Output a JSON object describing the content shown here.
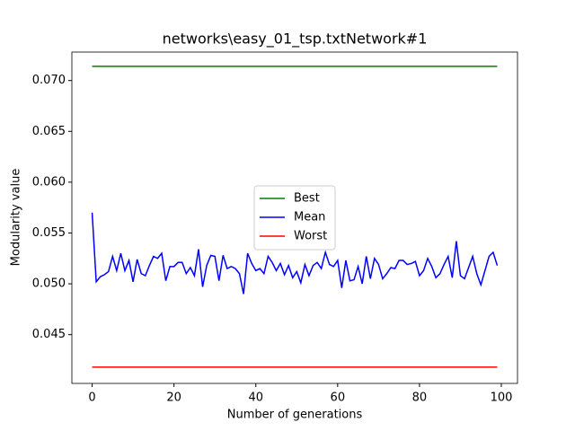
{
  "chart_data": {
    "type": "line",
    "title": "networks\\easy_01_tsp.txtNetwork#1",
    "xlabel": "Number of generations",
    "ylabel": "Modularity value",
    "x": [
      0,
      1,
      2,
      3,
      4,
      5,
      6,
      7,
      8,
      9,
      10,
      11,
      12,
      13,
      14,
      15,
      16,
      17,
      18,
      19,
      20,
      21,
      22,
      23,
      24,
      25,
      26,
      27,
      28,
      29,
      30,
      31,
      32,
      33,
      34,
      35,
      36,
      37,
      38,
      39,
      40,
      41,
      42,
      43,
      44,
      45,
      46,
      47,
      48,
      49,
      50,
      51,
      52,
      53,
      54,
      55,
      56,
      57,
      58,
      59,
      60,
      61,
      62,
      63,
      64,
      65,
      66,
      67,
      68,
      69,
      70,
      71,
      72,
      73,
      74,
      75,
      76,
      77,
      78,
      79,
      80,
      81,
      82,
      83,
      84,
      85,
      86,
      87,
      88,
      89,
      90,
      91,
      92,
      93,
      94,
      95,
      96,
      97,
      98,
      99
    ],
    "series": [
      {
        "name": "Best",
        "color": "#008000",
        "values": [
          0.0714,
          0.0714,
          0.0714,
          0.0714,
          0.0714,
          0.0714,
          0.0714,
          0.0714,
          0.0714,
          0.0714,
          0.0714,
          0.0714,
          0.0714,
          0.0714,
          0.0714,
          0.0714,
          0.0714,
          0.0714,
          0.0714,
          0.0714,
          0.0714,
          0.0714,
          0.0714,
          0.0714,
          0.0714,
          0.0714,
          0.0714,
          0.0714,
          0.0714,
          0.0714,
          0.0714,
          0.0714,
          0.0714,
          0.0714,
          0.0714,
          0.0714,
          0.0714,
          0.0714,
          0.0714,
          0.0714,
          0.0714,
          0.0714,
          0.0714,
          0.0714,
          0.0714,
          0.0714,
          0.0714,
          0.0714,
          0.0714,
          0.0714,
          0.0714,
          0.0714,
          0.0714,
          0.0714,
          0.0714,
          0.0714,
          0.0714,
          0.0714,
          0.0714,
          0.0714,
          0.0714,
          0.0714,
          0.0714,
          0.0714,
          0.0714,
          0.0714,
          0.0714,
          0.0714,
          0.0714,
          0.0714,
          0.0714,
          0.0714,
          0.0714,
          0.0714,
          0.0714,
          0.0714,
          0.0714,
          0.0714,
          0.0714,
          0.0714,
          0.0714,
          0.0714,
          0.0714,
          0.0714,
          0.0714,
          0.0714,
          0.0714,
          0.0714,
          0.0714,
          0.0714,
          0.0714,
          0.0714,
          0.0714,
          0.0714,
          0.0714,
          0.0714,
          0.0714,
          0.0714,
          0.0714,
          0.0714
        ]
      },
      {
        "name": "Mean",
        "color": "#0000ff",
        "values": [
          0.057,
          0.0502,
          0.0507,
          0.0509,
          0.0512,
          0.0527,
          0.0513,
          0.053,
          0.0513,
          0.0523,
          0.0502,
          0.0524,
          0.051,
          0.0508,
          0.0518,
          0.0527,
          0.0525,
          0.053,
          0.0503,
          0.0517,
          0.0517,
          0.0521,
          0.0521,
          0.051,
          0.0516,
          0.0508,
          0.0534,
          0.0497,
          0.0518,
          0.0528,
          0.0527,
          0.0503,
          0.0528,
          0.0515,
          0.0517,
          0.0515,
          0.051,
          0.049,
          0.053,
          0.052,
          0.0513,
          0.0515,
          0.051,
          0.0527,
          0.0521,
          0.0513,
          0.052,
          0.0509,
          0.0518,
          0.0506,
          0.0512,
          0.0501,
          0.0519,
          0.0508,
          0.0518,
          0.0521,
          0.0515,
          0.0531,
          0.0519,
          0.0517,
          0.0523,
          0.0496,
          0.0523,
          0.0503,
          0.0504,
          0.0517,
          0.05,
          0.0527,
          0.0505,
          0.0525,
          0.0519,
          0.0505,
          0.051,
          0.0516,
          0.0515,
          0.0523,
          0.0523,
          0.0519,
          0.052,
          0.0522,
          0.0508,
          0.0513,
          0.0525,
          0.0517,
          0.0506,
          0.051,
          0.0519,
          0.0527,
          0.0506,
          0.0542,
          0.0508,
          0.0505,
          0.0516,
          0.0527,
          0.051,
          0.0499,
          0.0513,
          0.0527,
          0.0531,
          0.0518
        ]
      },
      {
        "name": "Worst",
        "color": "#ff0000",
        "values": [
          0.0418,
          0.0418,
          0.0418,
          0.0418,
          0.0418,
          0.0418,
          0.0418,
          0.0418,
          0.0418,
          0.0418,
          0.0418,
          0.0418,
          0.0418,
          0.0418,
          0.0418,
          0.0418,
          0.0418,
          0.0418,
          0.0418,
          0.0418,
          0.0418,
          0.0418,
          0.0418,
          0.0418,
          0.0418,
          0.0418,
          0.0418,
          0.0418,
          0.0418,
          0.0418,
          0.0418,
          0.0418,
          0.0418,
          0.0418,
          0.0418,
          0.0418,
          0.0418,
          0.0418,
          0.0418,
          0.0418,
          0.0418,
          0.0418,
          0.0418,
          0.0418,
          0.0418,
          0.0418,
          0.0418,
          0.0418,
          0.0418,
          0.0418,
          0.0418,
          0.0418,
          0.0418,
          0.0418,
          0.0418,
          0.0418,
          0.0418,
          0.0418,
          0.0418,
          0.0418,
          0.0418,
          0.0418,
          0.0418,
          0.0418,
          0.0418,
          0.0418,
          0.0418,
          0.0418,
          0.0418,
          0.0418,
          0.0418,
          0.0418,
          0.0418,
          0.0418,
          0.0418,
          0.0418,
          0.0418,
          0.0418,
          0.0418,
          0.0418,
          0.0418,
          0.0418,
          0.0418,
          0.0418,
          0.0418,
          0.0418,
          0.0418,
          0.0418,
          0.0418,
          0.0418,
          0.0418,
          0.0418,
          0.0418,
          0.0418,
          0.0418,
          0.0418,
          0.0418,
          0.0418,
          0.0418,
          0.0418
        ]
      }
    ],
    "xlim": [
      -4.95,
      103.95
    ],
    "xticks": [
      0,
      20,
      40,
      60,
      80,
      100
    ],
    "ylim": [
      0.0402,
      0.0728
    ],
    "yticks": [
      0.045,
      {
        "value": 0.05,
        "label": "0.050"
      },
      0.055,
      {
        "value": 0.06,
        "label": "0.060"
      },
      0.065,
      {
        "value": 0.07,
        "label": "0.070"
      }
    ],
    "legend": "center"
  }
}
